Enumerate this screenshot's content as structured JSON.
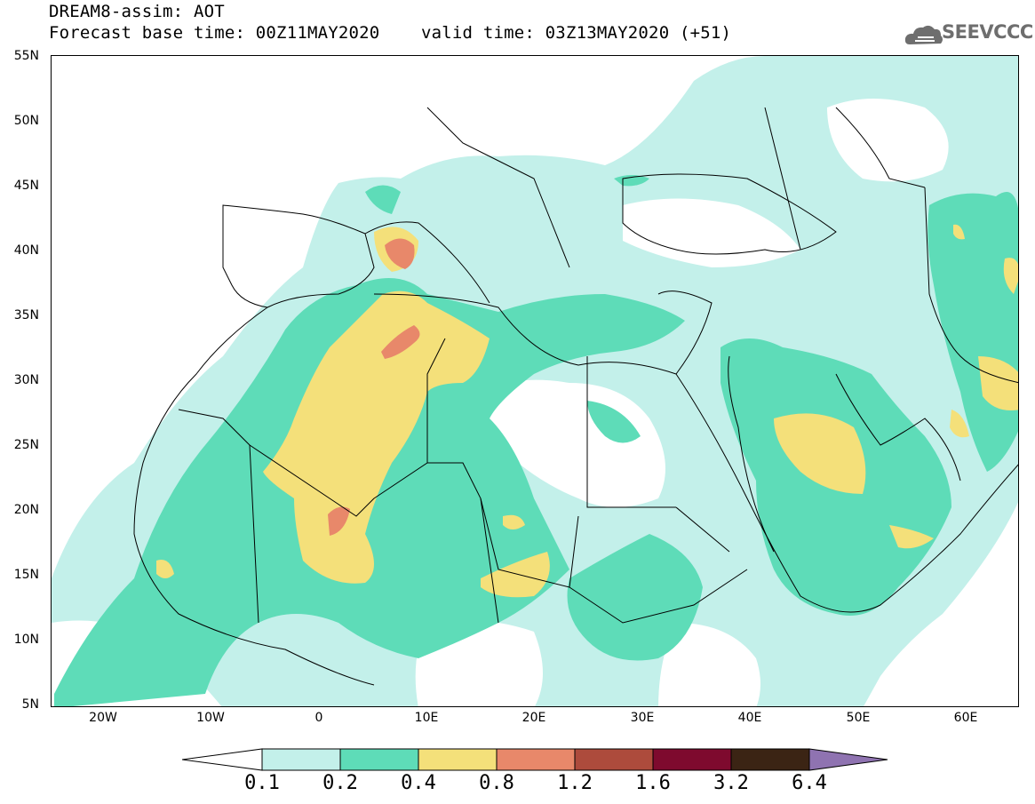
{
  "header": {
    "title_line1": "DREAM8-assim: AOT",
    "title_line2": "Forecast base time: 00Z11MAY2020    valid time: 03Z13MAY2020 (+51)"
  },
  "logo": {
    "text": "SEEVCCC",
    "icon": "cloud-logo-icon"
  },
  "map": {
    "lat_labels": [
      "55N",
      "50N",
      "45N",
      "40N",
      "35N",
      "30N",
      "25N",
      "20N",
      "15N",
      "10N",
      "5N"
    ],
    "lon_labels": [
      "20W",
      "10W",
      "0",
      "10E",
      "20E",
      "30E",
      "40E",
      "50E",
      "60E"
    ],
    "lon_range": [
      -25,
      65
    ],
    "lat_range": [
      5,
      55
    ],
    "field": "Dust aerosol optical thickness (AOT)"
  },
  "legend": {
    "labels": [
      "0.1",
      "0.2",
      "0.4",
      "0.8",
      "1.2",
      "1.6",
      "3.2",
      "6.4"
    ],
    "colors": [
      "#ffffff",
      "#c3f0ea",
      "#5edcb8",
      "#f4e07a",
      "#e8886a",
      "#ad4b3c",
      "#7e0a2e",
      "#3b2414",
      "#8f73b1"
    ]
  }
}
